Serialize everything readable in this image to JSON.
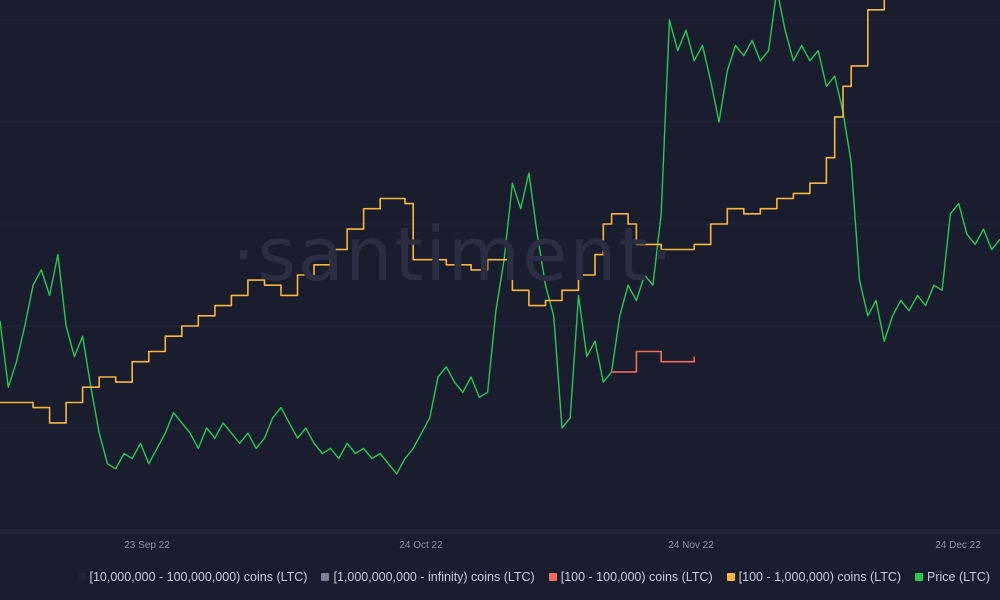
{
  "watermark": "·santiment·",
  "chart_data": {
    "type": "line",
    "x_ticks": [
      "23 Sep 22",
      "24 Oct 22",
      "24 Nov 22",
      "24 Dec 22"
    ],
    "grid": "horizontal",
    "legend_position": "bottom-right",
    "x_range": [
      "2022-09-01",
      "2022-12-31"
    ],
    "series": [
      {
        "name": "[10,000,000 - 100,000,000) coins (LTC)",
        "color": "#1e2233",
        "axis": "supply",
        "style": "step",
        "values": []
      },
      {
        "name": "[1,000,000,000 - infinity) coins (LTC)",
        "color": "#7b8094",
        "axis": "supply",
        "style": "step",
        "values": []
      },
      {
        "name": "[100 - 100,000) coins (LTC)",
        "color": "#f26b5b",
        "axis": "supply",
        "style": "step",
        "values": [
          [
            "2022-11-14",
            0.31
          ],
          [
            "2022-11-17",
            0.35
          ],
          [
            "2022-11-20",
            0.33
          ],
          [
            "2022-11-24",
            0.34
          ]
        ]
      },
      {
        "name": "[100 - 1,000,000) coins (LTC)",
        "color": "#f6b73c",
        "axis": "supply",
        "style": "step",
        "values": [
          [
            "2022-09-01",
            0.25
          ],
          [
            "2022-09-05",
            0.24
          ],
          [
            "2022-09-07",
            0.21
          ],
          [
            "2022-09-09",
            0.25
          ],
          [
            "2022-09-11",
            0.28
          ],
          [
            "2022-09-13",
            0.3
          ],
          [
            "2022-09-15",
            0.29
          ],
          [
            "2022-09-17",
            0.33
          ],
          [
            "2022-09-19",
            0.35
          ],
          [
            "2022-09-21",
            0.38
          ],
          [
            "2022-09-23",
            0.4
          ],
          [
            "2022-09-25",
            0.42
          ],
          [
            "2022-09-27",
            0.44
          ],
          [
            "2022-09-29",
            0.46
          ],
          [
            "2022-10-01",
            0.49
          ],
          [
            "2022-10-03",
            0.48
          ],
          [
            "2022-10-05",
            0.46
          ],
          [
            "2022-10-07",
            0.5
          ],
          [
            "2022-10-09",
            0.52
          ],
          [
            "2022-10-11",
            0.55
          ],
          [
            "2022-10-13",
            0.59
          ],
          [
            "2022-10-15",
            0.63
          ],
          [
            "2022-10-17",
            0.65
          ],
          [
            "2022-10-20",
            0.64
          ],
          [
            "2022-10-21",
            0.53
          ],
          [
            "2022-10-25",
            0.52
          ],
          [
            "2022-10-28",
            0.51
          ],
          [
            "2022-10-30",
            0.53
          ],
          [
            "2022-11-02",
            0.47
          ],
          [
            "2022-11-04",
            0.44
          ],
          [
            "2022-11-06",
            0.45
          ],
          [
            "2022-11-08",
            0.47
          ],
          [
            "2022-11-10",
            0.5
          ],
          [
            "2022-11-12",
            0.54
          ],
          [
            "2022-11-13",
            0.6
          ],
          [
            "2022-11-14",
            0.62
          ],
          [
            "2022-11-16",
            0.6
          ],
          [
            "2022-11-17",
            0.56
          ],
          [
            "2022-11-20",
            0.55
          ],
          [
            "2022-11-24",
            0.56
          ],
          [
            "2022-11-26",
            0.6
          ],
          [
            "2022-11-28",
            0.63
          ],
          [
            "2022-11-30",
            0.62
          ],
          [
            "2022-12-02",
            0.63
          ],
          [
            "2022-12-04",
            0.65
          ],
          [
            "2022-12-06",
            0.66
          ],
          [
            "2022-12-08",
            0.68
          ],
          [
            "2022-12-10",
            0.73
          ],
          [
            "2022-12-11",
            0.81
          ],
          [
            "2022-12-12",
            0.87
          ],
          [
            "2022-12-13",
            0.91
          ],
          [
            "2022-12-15",
            1.02
          ],
          [
            "2022-12-17",
            1.08
          ],
          [
            "2022-12-19",
            1.07
          ],
          [
            "2022-12-21",
            1.1
          ],
          [
            "2022-12-24",
            1.11
          ],
          [
            "2022-12-27",
            1.12
          ],
          [
            "2022-12-30",
            1.13
          ],
          [
            "2022-12-31",
            1.14
          ]
        ]
      },
      {
        "name": "Price (LTC)",
        "color": "#26c953",
        "axis": "price",
        "style": "line",
        "values": [
          [
            "2022-09-01",
            0.41
          ],
          [
            "2022-09-02",
            0.28
          ],
          [
            "2022-09-03",
            0.33
          ],
          [
            "2022-09-04",
            0.4
          ],
          [
            "2022-09-05",
            0.48
          ],
          [
            "2022-09-06",
            0.51
          ],
          [
            "2022-09-07",
            0.46
          ],
          [
            "2022-09-08",
            0.54
          ],
          [
            "2022-09-09",
            0.4
          ],
          [
            "2022-09-10",
            0.34
          ],
          [
            "2022-09-11",
            0.38
          ],
          [
            "2022-09-12",
            0.28
          ],
          [
            "2022-09-13",
            0.19
          ],
          [
            "2022-09-14",
            0.13
          ],
          [
            "2022-09-15",
            0.12
          ],
          [
            "2022-09-16",
            0.15
          ],
          [
            "2022-09-17",
            0.14
          ],
          [
            "2022-09-18",
            0.17
          ],
          [
            "2022-09-19",
            0.13
          ],
          [
            "2022-09-20",
            0.16
          ],
          [
            "2022-09-21",
            0.19
          ],
          [
            "2022-09-22",
            0.23
          ],
          [
            "2022-09-23",
            0.21
          ],
          [
            "2022-09-24",
            0.19
          ],
          [
            "2022-09-25",
            0.16
          ],
          [
            "2022-09-26",
            0.2
          ],
          [
            "2022-09-27",
            0.18
          ],
          [
            "2022-09-28",
            0.21
          ],
          [
            "2022-09-29",
            0.19
          ],
          [
            "2022-09-30",
            0.17
          ],
          [
            "2022-10-01",
            0.19
          ],
          [
            "2022-10-02",
            0.16
          ],
          [
            "2022-10-03",
            0.18
          ],
          [
            "2022-10-04",
            0.22
          ],
          [
            "2022-10-05",
            0.24
          ],
          [
            "2022-10-06",
            0.21
          ],
          [
            "2022-10-07",
            0.18
          ],
          [
            "2022-10-08",
            0.2
          ],
          [
            "2022-10-09",
            0.17
          ],
          [
            "2022-10-10",
            0.15
          ],
          [
            "2022-10-11",
            0.16
          ],
          [
            "2022-10-12",
            0.14
          ],
          [
            "2022-10-13",
            0.17
          ],
          [
            "2022-10-14",
            0.15
          ],
          [
            "2022-10-15",
            0.16
          ],
          [
            "2022-10-16",
            0.14
          ],
          [
            "2022-10-17",
            0.15
          ],
          [
            "2022-10-18",
            0.13
          ],
          [
            "2022-10-19",
            0.11
          ],
          [
            "2022-10-20",
            0.14
          ],
          [
            "2022-10-21",
            0.16
          ],
          [
            "2022-10-22",
            0.19
          ],
          [
            "2022-10-23",
            0.22
          ],
          [
            "2022-10-24",
            0.3
          ],
          [
            "2022-10-25",
            0.32
          ],
          [
            "2022-10-26",
            0.29
          ],
          [
            "2022-10-27",
            0.27
          ],
          [
            "2022-10-28",
            0.3
          ],
          [
            "2022-10-29",
            0.26
          ],
          [
            "2022-10-30",
            0.27
          ],
          [
            "2022-10-31",
            0.43
          ],
          [
            "2022-11-01",
            0.53
          ],
          [
            "2022-11-02",
            0.68
          ],
          [
            "2022-11-03",
            0.63
          ],
          [
            "2022-11-04",
            0.7
          ],
          [
            "2022-11-05",
            0.58
          ],
          [
            "2022-11-06",
            0.48
          ],
          [
            "2022-11-07",
            0.42
          ],
          [
            "2022-11-08",
            0.2
          ],
          [
            "2022-11-09",
            0.22
          ],
          [
            "2022-11-10",
            0.46
          ],
          [
            "2022-11-11",
            0.34
          ],
          [
            "2022-11-12",
            0.37
          ],
          [
            "2022-11-13",
            0.29
          ],
          [
            "2022-11-14",
            0.31
          ],
          [
            "2022-11-15",
            0.42
          ],
          [
            "2022-11-16",
            0.48
          ],
          [
            "2022-11-17",
            0.45
          ],
          [
            "2022-11-18",
            0.5
          ],
          [
            "2022-11-19",
            0.48
          ],
          [
            "2022-11-20",
            0.62
          ],
          [
            "2022-11-21",
            1.0
          ],
          [
            "2022-11-22",
            0.94
          ],
          [
            "2022-11-23",
            0.98
          ],
          [
            "2022-11-24",
            0.92
          ],
          [
            "2022-11-25",
            0.95
          ],
          [
            "2022-11-26",
            0.88
          ],
          [
            "2022-11-27",
            0.8
          ],
          [
            "2022-11-28",
            0.9
          ],
          [
            "2022-11-29",
            0.95
          ],
          [
            "2022-11-30",
            0.93
          ],
          [
            "2022-12-01",
            0.96
          ],
          [
            "2022-12-02",
            0.92
          ],
          [
            "2022-12-03",
            0.94
          ],
          [
            "2022-12-04",
            1.06
          ],
          [
            "2022-12-05",
            0.98
          ],
          [
            "2022-12-06",
            0.92
          ],
          [
            "2022-12-07",
            0.95
          ],
          [
            "2022-12-08",
            0.92
          ],
          [
            "2022-12-09",
            0.94
          ],
          [
            "2022-12-10",
            0.87
          ],
          [
            "2022-12-11",
            0.89
          ],
          [
            "2022-12-12",
            0.82
          ],
          [
            "2022-12-13",
            0.72
          ],
          [
            "2022-12-14",
            0.49
          ],
          [
            "2022-12-15",
            0.42
          ],
          [
            "2022-12-16",
            0.45
          ],
          [
            "2022-12-17",
            0.37
          ],
          [
            "2022-12-18",
            0.42
          ],
          [
            "2022-12-19",
            0.45
          ],
          [
            "2022-12-20",
            0.43
          ],
          [
            "2022-12-21",
            0.46
          ],
          [
            "2022-12-22",
            0.44
          ],
          [
            "2022-12-23",
            0.48
          ],
          [
            "2022-12-24",
            0.47
          ],
          [
            "2022-12-25",
            0.62
          ],
          [
            "2022-12-26",
            0.64
          ],
          [
            "2022-12-27",
            0.58
          ],
          [
            "2022-12-28",
            0.56
          ],
          [
            "2022-12-29",
            0.59
          ],
          [
            "2022-12-30",
            0.55
          ],
          [
            "2022-12-31",
            0.57
          ]
        ]
      }
    ]
  }
}
